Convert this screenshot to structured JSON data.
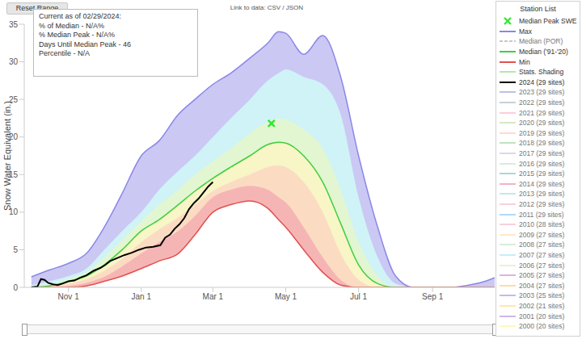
{
  "chart_data": {
    "type": "line",
    "reset_button": "Reset Range",
    "link_text": "Link to data: CSV / JSON",
    "info_box": [
      "Current as of 02/29/2024:",
      "% of Median - N/A%",
      "% Median Peak - N/A%",
      "Days Until Median Peak - 46",
      "Percentile - N/A"
    ],
    "ylabel": "Snow Water Equivalent (in.)",
    "legend_title": "Station List",
    "legend": "right",
    "grid": false,
    "x": [
      0,
      15,
      31,
      46,
      61,
      76,
      92,
      107,
      123,
      137,
      152,
      167,
      183,
      198,
      207,
      213,
      228,
      244,
      259,
      274,
      290,
      305,
      320,
      336,
      351,
      366,
      380,
      388
    ],
    "xlim": [
      -6,
      388
    ],
    "xticks": [
      {
        "value": 31,
        "label": "Nov 1"
      },
      {
        "value": 92,
        "label": "Jan 1"
      },
      {
        "value": 152,
        "label": "Mar 1"
      },
      {
        "value": 213,
        "label": "May 1"
      },
      {
        "value": 274,
        "label": "Jul 1"
      },
      {
        "value": 336,
        "label": "Sep 1"
      }
    ],
    "ylim": [
      0,
      35
    ],
    "yticks": [
      0,
      5,
      10,
      15,
      20,
      25,
      30,
      35
    ],
    "series": [
      {
        "name": "Median Peak SWE",
        "type": "scatter",
        "marker": "x",
        "color": "#2ee82e",
        "x": [
          201
        ],
        "values": [
          21.8
        ]
      },
      {
        "name": "Max",
        "color": "#8b87e6",
        "values": [
          1.4,
          2.3,
          3.2,
          4.5,
          8,
          12.5,
          17.5,
          19.5,
          23,
          25,
          27,
          28.5,
          30.5,
          32.5,
          34,
          33.8,
          31,
          33.5,
          28,
          17.5,
          8,
          1.5,
          0,
          0,
          0,
          0.3,
          0.8,
          1.3
        ]
      },
      {
        "name": "Median (POR)",
        "color": "#b0b0b0",
        "line_style": "dashed"
      },
      {
        "name": "Median ('91-'20)",
        "color": "#3fcf3f",
        "values": [
          0,
          0.2,
          0.8,
          1.5,
          3,
          5,
          7.5,
          9,
          11,
          12.8,
          14.5,
          16,
          17.5,
          19,
          19.3,
          19.2,
          17.5,
          14,
          8.5,
          3,
          0.5,
          0,
          0,
          0,
          0,
          0,
          0,
          0
        ]
      },
      {
        "name": "Min",
        "color": "#e3504f",
        "values": [
          0,
          0,
          0,
          0.2,
          0.8,
          1.5,
          2.5,
          3.5,
          4.5,
          7,
          10,
          11,
          11.5,
          10.5,
          9,
          8,
          5,
          2,
          0.3,
          0,
          0,
          0,
          0,
          0,
          0,
          0,
          0,
          0
        ]
      },
      {
        "name": "Stats. Shading",
        "type": "area",
        "color": "#b5e8a8",
        "colors": [
          "#cbc8f4",
          "#cff3f6",
          "#e2f6d2",
          "#f8f5c6",
          "#fbdcc2",
          "#f6b5b5"
        ],
        "bounds": [
          [
            0.3,
            0.8,
            1.5,
            2.5,
            5,
            7.5,
            10,
            13,
            15.5,
            17.5,
            20,
            22.5,
            25,
            27.5,
            28.5,
            29,
            28,
            27,
            23,
            12,
            4,
            0.5,
            0,
            0,
            0,
            0,
            0,
            0
          ],
          [
            0.1,
            0.4,
            1.1,
            2,
            4,
            6.3,
            8.8,
            11,
            13,
            15,
            16.8,
            18.5,
            20.5,
            22,
            22.5,
            22.3,
            21,
            18.5,
            13,
            6,
            1.5,
            0,
            0,
            0,
            0,
            0,
            0,
            0
          ],
          [
            0,
            0.1,
            0.5,
            1.1,
            2.2,
            3.8,
            6,
            7.7,
            9.3,
            11,
            12.8,
            14,
            15,
            16,
            16.2,
            16,
            14,
            10,
            4.5,
            1,
            0,
            0,
            0,
            0,
            0,
            0,
            0,
            0
          ],
          [
            0,
            0,
            0.2,
            0.6,
            1.4,
            2.8,
            4.5,
            6,
            7.5,
            9.5,
            12,
            13,
            13.5,
            13,
            12,
            11.3,
            8,
            4,
            1,
            0,
            0,
            0,
            0,
            0,
            0,
            0,
            0,
            0
          ]
        ]
      },
      {
        "name": "2024 (29 sites)",
        "color": "#000000",
        "x": [
          0,
          5,
          8,
          11,
          14,
          18,
          22,
          26,
          31,
          36,
          41,
          46,
          52,
          58,
          62,
          66,
          72,
          78,
          84,
          90,
          96,
          102,
          108,
          112,
          116,
          120,
          124,
          128,
          132,
          136,
          140,
          144,
          148,
          152
        ],
        "values": [
          0,
          0.1,
          1.1,
          1.0,
          0.6,
          0.4,
          0.3,
          0.5,
          0.8,
          0.9,
          1.3,
          1.6,
          2.2,
          2.6,
          3.0,
          3.5,
          3.9,
          4.3,
          4.6,
          5.0,
          5.3,
          5.4,
          5.6,
          6.6,
          7.0,
          7.8,
          8.4,
          9.2,
          10.4,
          11.2,
          11.8,
          12.6,
          13.4,
          14.0
        ]
      },
      {
        "name": "2023 (29 sites)",
        "color": "#9fa8da"
      },
      {
        "name": "2022 (29 sites)",
        "color": "#b0bec5"
      },
      {
        "name": "2021 (29 sites)",
        "color": "#f8bbd0"
      },
      {
        "name": "2020 (29 sites)",
        "color": "#c5e1a5"
      },
      {
        "name": "2019 (29 sites)",
        "color": "#ffccbc"
      },
      {
        "name": "2018 (29 sites)",
        "color": "#a5d6a7"
      },
      {
        "name": "2017 (29 sites)",
        "color": "#d1c4e9"
      },
      {
        "name": "2016 (29 sites)",
        "color": "#c8e6c9"
      },
      {
        "name": "2015 (29 sites)",
        "color": "#80cbc4"
      },
      {
        "name": "2014 (29 sites)",
        "color": "#f48fb1"
      },
      {
        "name": "2013 (29 sites)",
        "color": "#b2dfdb"
      },
      {
        "name": "2012 (29 sites)",
        "color": "#f8bbd0"
      },
      {
        "name": "2011 (29 sites)",
        "color": "#90caf9"
      },
      {
        "name": "2010 (28 sites)",
        "color": "#f8bbd0"
      },
      {
        "name": "2009 (27 sites)",
        "color": "#ffe0b2"
      },
      {
        "name": "2008 (27 sites)",
        "color": "#c8e6c9"
      },
      {
        "name": "2007 (27 sites)",
        "color": "#b3e5fc"
      },
      {
        "name": "2006 (27 sites)",
        "color": "#dcedc8"
      },
      {
        "name": "2005 (27 sites)",
        "color": "#ce93d8"
      },
      {
        "name": "2004 (27 sites)",
        "color": "#ffcc80"
      },
      {
        "name": "2003 (25 sites)",
        "color": "#9fa8da"
      },
      {
        "name": "2002 (21 sites)",
        "color": "#ffe082"
      },
      {
        "name": "2001 (20 sites)",
        "color": "#b39ddb"
      },
      {
        "name": "2000 (20 sites)",
        "color": "#fff59d"
      }
    ]
  }
}
